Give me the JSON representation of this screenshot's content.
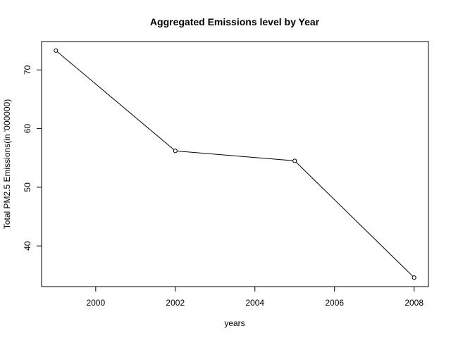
{
  "chart_data": {
    "type": "line",
    "title": "Aggregated Emissions level by Year",
    "xlabel": "years",
    "ylabel": "Total PM2.5 Emissions(in '000000)",
    "x": [
      1999,
      2002,
      2005,
      2008
    ],
    "series": [
      {
        "values": [
          73.3,
          56.2,
          54.5,
          34.6
        ],
        "color": "#000000",
        "marker": "open-circle"
      }
    ],
    "xlim": [
      1998.64,
      2008.36
    ],
    "ylim": [
      33.06,
      74.84
    ],
    "xticks": [
      2000,
      2002,
      2004,
      2006,
      2008
    ],
    "yticks": [
      40,
      50,
      60,
      70
    ],
    "grid": false,
    "legend": "none"
  }
}
